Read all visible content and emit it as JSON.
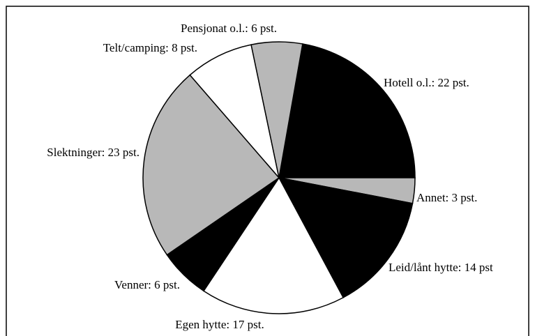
{
  "chart_data": {
    "type": "pie",
    "values": [
      22,
      3,
      14,
      17,
      6,
      23,
      8,
      6
    ],
    "value_labels": [
      "Hotell o.l.: 22 pst.",
      "Annet: 3 pst.",
      "Leid/lånt hytte: 14 pst",
      "Egen hytte: 17 pst.",
      "Venner: 6 pst.",
      "Slektninger: 23 pst.",
      "Telt/camping: 8 pst.",
      "Pensjonat o.l.: 6 pst."
    ],
    "colors": [
      "#000000",
      "#b8b8b8",
      "#000000",
      "#ffffff",
      "#000000",
      "#b8b8b8",
      "#ffffff",
      "#b8b8b8"
    ]
  }
}
